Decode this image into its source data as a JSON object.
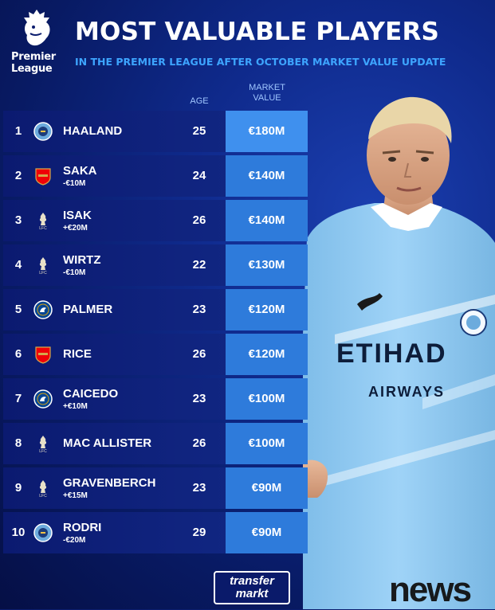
{
  "header": {
    "logo_text": "Premier League",
    "logo_line1": "Premier",
    "logo_line2": "League",
    "title": "MOST VALUABLE PLAYERS",
    "subtitle": "IN THE PREMIER LEAGUE AFTER OCTOBER MARKET VALUE UPDATE"
  },
  "columns": {
    "age": "AGE",
    "market_line1": "MARKET",
    "market_line2": "VALUE"
  },
  "rows": [
    {
      "rank": "1",
      "club": "Manchester City",
      "crest": "man-city-crest",
      "name": "HAALAND",
      "change": "",
      "age": "25",
      "value": "€180M"
    },
    {
      "rank": "2",
      "club": "Arsenal",
      "crest": "arsenal-crest",
      "name": "SAKA",
      "change": "-€10M",
      "age": "24",
      "value": "€140M"
    },
    {
      "rank": "3",
      "club": "Liverpool",
      "crest": "liverpool-crest",
      "name": "ISAK",
      "change": "+€20M",
      "age": "26",
      "value": "€140M"
    },
    {
      "rank": "4",
      "club": "Liverpool",
      "crest": "liverpool-crest",
      "name": "WIRTZ",
      "change": "-€10M",
      "age": "22",
      "value": "€130M"
    },
    {
      "rank": "5",
      "club": "Chelsea",
      "crest": "chelsea-crest",
      "name": "PALMER",
      "change": "",
      "age": "23",
      "value": "€120M"
    },
    {
      "rank": "6",
      "club": "Arsenal",
      "crest": "arsenal-crest",
      "name": "RICE",
      "change": "",
      "age": "26",
      "value": "€120M"
    },
    {
      "rank": "7",
      "club": "Chelsea",
      "crest": "chelsea-crest",
      "name": "CAICEDO",
      "change": "+€10M",
      "age": "23",
      "value": "€100M"
    },
    {
      "rank": "8",
      "club": "Liverpool",
      "crest": "liverpool-crest",
      "name": "MAC ALLISTER",
      "change": "",
      "age": "26",
      "value": "€100M"
    },
    {
      "rank": "9",
      "club": "Liverpool",
      "crest": "liverpool-crest",
      "name": "GRAVENBERCH",
      "change": "+€15M",
      "age": "23",
      "value": "€90M"
    },
    {
      "rank": "10",
      "club": "Manchester City",
      "crest": "man-city-crest",
      "name": "RODRI",
      "change": "-€20M",
      "age": "29",
      "value": "€90M"
    }
  ],
  "player_image": {
    "shirt_sponsor": "ETIHAD",
    "shirt_sponsor_sub": "AIRWAYS"
  },
  "footer": {
    "brand_line1": "transfer",
    "brand_line2": "markt",
    "watermark": "news"
  },
  "colors": {
    "background": "#0b1d6e",
    "value_cell": "#2e7bdb",
    "subtitle": "#3da5ff",
    "shirt": "#8ec9f2"
  }
}
